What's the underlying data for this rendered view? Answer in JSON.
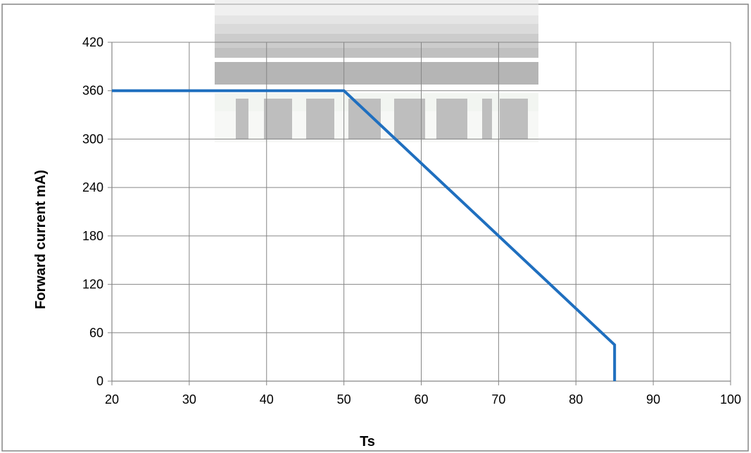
{
  "chart_data": {
    "type": "line",
    "title": "",
    "xlabel": "Ts",
    "ylabel": "Forward current    mA)",
    "xlim": [
      20,
      100
    ],
    "ylim": [
      0,
      420
    ],
    "x_ticks": [
      20,
      30,
      40,
      50,
      60,
      70,
      80,
      90,
      100
    ],
    "y_ticks": [
      0,
      60,
      120,
      180,
      240,
      300,
      360,
      420
    ],
    "grid": true,
    "legend": "none",
    "series": [
      {
        "color": "#1f6fbf",
        "points": [
          {
            "x": 20,
            "y": 360
          },
          {
            "x": 50,
            "y": 360
          },
          {
            "x": 85,
            "y": 45
          },
          {
            "x": 85,
            "y": 0
          }
        ]
      }
    ]
  }
}
